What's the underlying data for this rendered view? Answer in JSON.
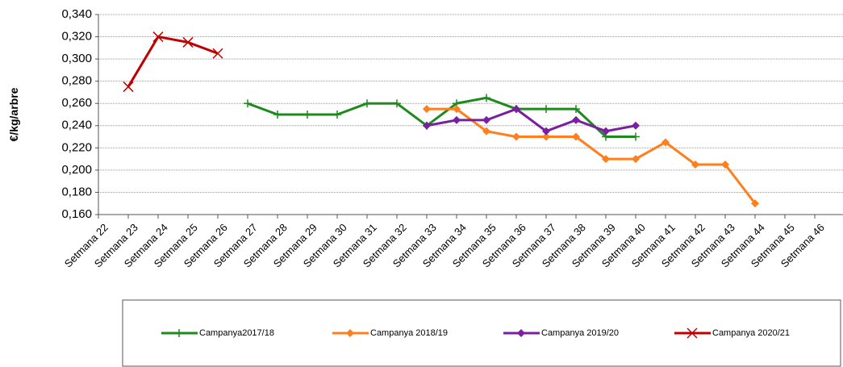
{
  "chart_data": {
    "type": "line",
    "y_label": "€/kg/arbre",
    "categories": [
      "Setmana 22",
      "Setmana 23",
      "Setmana 24",
      "Setmana 25",
      "Setmana 26",
      "Setmana 27",
      "Setmana 28",
      "Setmana 29",
      "Setmana 30",
      "Setmana 31",
      "Setmana 32",
      "Setmana 33",
      "Setmana 34",
      "Setmana 35",
      "Setmana 36",
      "Setmana 37",
      "Setmana 38",
      "Setmana 39",
      "Setmana 40",
      "Setmana 41",
      "Setmana 42",
      "Setmana 43",
      "Setmana 44",
      "Setmana 45",
      "Setmana 46"
    ],
    "series": [
      {
        "name": "Campanya2017/18",
        "color": "#1e8a1e",
        "marker": "plus",
        "values": [
          null,
          null,
          null,
          null,
          null,
          0.26,
          0.25,
          0.25,
          0.25,
          0.26,
          0.26,
          0.24,
          0.26,
          0.265,
          0.255,
          0.255,
          0.255,
          0.23,
          0.23,
          null,
          null,
          null,
          null,
          null,
          null
        ]
      },
      {
        "name": "Campanya 2018/19",
        "color": "#ff7f1e",
        "marker": "diamond",
        "values": [
          null,
          null,
          null,
          null,
          null,
          null,
          null,
          null,
          null,
          null,
          null,
          0.255,
          0.255,
          0.235,
          0.23,
          0.23,
          0.23,
          0.21,
          0.21,
          0.225,
          0.205,
          0.205,
          0.17,
          null,
          null
        ]
      },
      {
        "name": "Campanya 2019/20",
        "color": "#7a1fa0",
        "marker": "diamond",
        "values": [
          null,
          null,
          null,
          null,
          null,
          null,
          null,
          null,
          null,
          null,
          null,
          0.24,
          0.245,
          0.245,
          0.255,
          0.235,
          0.245,
          0.235,
          0.24,
          null,
          null,
          null,
          null,
          null,
          null
        ]
      },
      {
        "name": "Campanya 2020/21",
        "color": "#c00000",
        "marker": "cross",
        "values": [
          null,
          0.275,
          0.32,
          0.315,
          0.305,
          null,
          null,
          null,
          null,
          null,
          null,
          null,
          null,
          null,
          null,
          null,
          null,
          null,
          null,
          null,
          null,
          null,
          null,
          null,
          null
        ]
      }
    ],
    "ylim": [
      0.16,
      0.34
    ],
    "yticks": [
      {
        "value": 0.16,
        "label": "0,160"
      },
      {
        "value": 0.18,
        "label": "0,180"
      },
      {
        "value": 0.2,
        "label": "0,200"
      },
      {
        "value": 0.22,
        "label": "0,220"
      },
      {
        "value": 0.24,
        "label": "0,240"
      },
      {
        "value": 0.26,
        "label": "0,260"
      },
      {
        "value": 0.28,
        "label": "0,280"
      },
      {
        "value": 0.3,
        "label": "0,300"
      },
      {
        "value": 0.32,
        "label": "0,320"
      },
      {
        "value": 0.34,
        "label": "0,340"
      }
    ],
    "grid": true
  }
}
